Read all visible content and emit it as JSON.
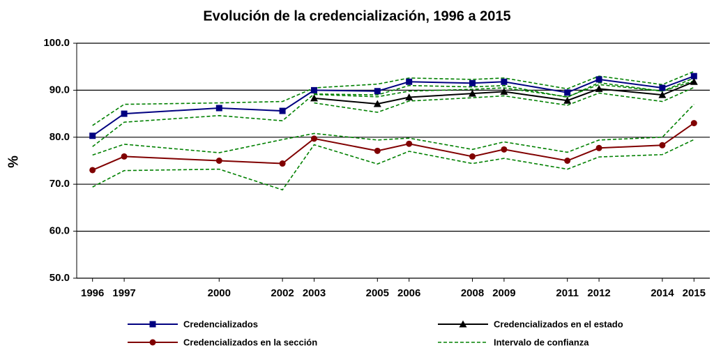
{
  "chart_data": {
    "type": "line",
    "title": "Evolución de la credencialización, 1996 a 2015",
    "y_label": "%",
    "x": [
      1996,
      1997,
      2000,
      2002,
      2003,
      2005,
      2006,
      2008,
      2009,
      2011,
      2012,
      2014,
      2015
    ],
    "xlim": [
      1995.5,
      2015.5
    ],
    "ylim": [
      50,
      100
    ],
    "yticks": [
      {
        "value": 50,
        "label": "50.0"
      },
      {
        "value": 60,
        "label": "60.0"
      },
      {
        "value": 70,
        "label": "70.0"
      },
      {
        "value": 80,
        "label": "80.0"
      },
      {
        "value": 90,
        "label": "90.0"
      },
      {
        "value": 100,
        "label": "100.0"
      }
    ],
    "grid": true,
    "series": [
      {
        "name": "Credencializados",
        "color": "#000080",
        "marker": "square",
        "values": [
          80.3,
          85,
          86.2,
          85.6,
          90,
          89.8,
          91.8,
          91.5,
          91.8,
          89.5,
          92.3,
          90.5,
          93
        ]
      },
      {
        "name": "Credencializados en el estado",
        "color": "#000000",
        "marker": "triangle",
        "values": [
          null,
          null,
          null,
          null,
          88.3,
          87.1,
          88.5,
          89.3,
          89.7,
          87.8,
          90.3,
          89,
          91.8
        ]
      },
      {
        "name": "Credencializados en la sección",
        "color": "#800000",
        "marker": "circle",
        "values": [
          73,
          75.9,
          75,
          74.4,
          79.7,
          77.1,
          78.6,
          75.9,
          77.4,
          75,
          77.7,
          78.3,
          83
        ]
      }
    ],
    "confidence_intervals": {
      "name": "Intervalo de confianza",
      "color": "#008000",
      "lines": [
        [
          82.5,
          87,
          87.3,
          87.6,
          90.5,
          91.3,
          92.6,
          92.3,
          92.6,
          90.3,
          93,
          91.2,
          94
        ],
        [
          78,
          83.2,
          84.6,
          83.5,
          89.2,
          89,
          91,
          90.7,
          91,
          88.5,
          91.6,
          89.8,
          92
        ],
        [
          null,
          null,
          null,
          null,
          89.1,
          88.6,
          89.8,
          90.2,
          90.5,
          88.6,
          91.2,
          89.8,
          92.6
        ],
        [
          null,
          null,
          null,
          null,
          87.3,
          85.3,
          87.7,
          88.4,
          88.8,
          86.8,
          89.4,
          87.6,
          90.6
        ],
        [
          76.2,
          78.5,
          76.7,
          79.5,
          80.8,
          79.4,
          79.8,
          77.4,
          79,
          76.8,
          79.4,
          80,
          87
        ],
        [
          69.4,
          72.9,
          73.2,
          68.8,
          78.4,
          74.3,
          77,
          74.4,
          75.5,
          73.2,
          75.8,
          76.3,
          79.5
        ]
      ]
    }
  }
}
